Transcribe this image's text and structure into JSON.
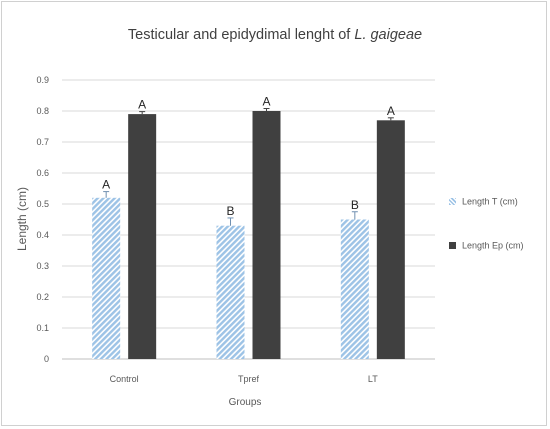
{
  "chart_data": {
    "type": "bar",
    "title": "Testicular and epidydimal lenght of",
    "title_species": "L. gaigeae",
    "xlabel": "Groups",
    "ylabel": "Length (cm)",
    "categories": [
      "Control",
      "Tpref",
      "LT"
    ],
    "ylim": [
      0,
      0.9
    ],
    "yticks": [
      "0",
      "0.1",
      "0.2",
      "0.3",
      "0.4",
      "0.5",
      "0.6",
      "0.7",
      "0.8",
      "0.9"
    ],
    "grid": true,
    "legend_position": "right",
    "series": [
      {
        "name": "Length T (cm)",
        "values": [
          0.52,
          0.43,
          0.45
        ],
        "errors": [
          0.02,
          0.025,
          0.025
        ],
        "letters": [
          "A",
          "B",
          "B"
        ],
        "color": "#9dc3e6",
        "pattern": "diagonal-hatch"
      },
      {
        "name": "Length Ep (cm)",
        "values": [
          0.79,
          0.8,
          0.77
        ],
        "errors": [
          0.008,
          0.008,
          0.008
        ],
        "letters": [
          "A",
          "A",
          "A"
        ],
        "color": "#404040",
        "pattern": "solid"
      }
    ]
  }
}
